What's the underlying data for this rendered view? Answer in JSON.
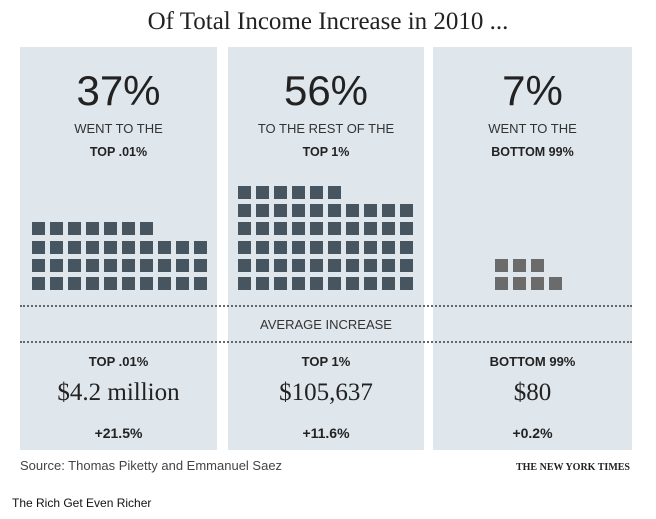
{
  "title": "Of Total Income Increase in 2010 ...",
  "chart_data": {
    "type": "pictogram",
    "title": "Of Total Income Increase in 2010 ...",
    "categories": [
      "TOP .01%",
      "TOP 1%",
      "BOTTOM 99%"
    ],
    "values": [
      37,
      56,
      7
    ],
    "colors": [
      "#46555f",
      "#46555f",
      "#6b6b6b"
    ]
  },
  "panels": [
    {
      "pct": "37%",
      "line1": "WENT TO THE",
      "line2": "TOP .01%",
      "group": "TOP .01%",
      "amount": "$4.2 million",
      "change": "+21.5%"
    },
    {
      "pct": "56%",
      "line1": "TO THE REST OF THE",
      "line2": "TOP 1%",
      "group": "TOP 1%",
      "amount": "$105,637",
      "change": "+11.6%"
    },
    {
      "pct": "7%",
      "line1": "WENT TO THE",
      "line2": "BOTTOM 99%",
      "group": "BOTTOM 99%",
      "amount": "$80",
      "change": "+0.2%"
    }
  ],
  "average_label": "AVERAGE INCREASE",
  "source": "Source: Thomas Piketty and Emmanuel Saez",
  "credit": "THE NEW YORK TIMES",
  "caption": "The Rich Get Even Richer"
}
